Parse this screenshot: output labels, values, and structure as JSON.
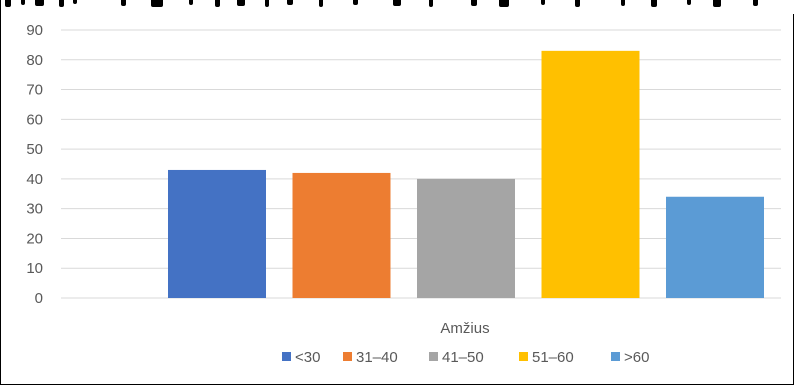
{
  "chart_data": {
    "type": "bar",
    "categories": [
      "Amžius"
    ],
    "series": [
      {
        "name": "<30",
        "values": [
          43
        ],
        "color": "#4472c4"
      },
      {
        "name": "31–40",
        "values": [
          42
        ],
        "color": "#ed7d31"
      },
      {
        "name": "41–50",
        "values": [
          40
        ],
        "color": "#a5a5a5"
      },
      {
        "name": "51–60",
        "values": [
          83
        ],
        "color": "#ffc000"
      },
      {
        "name": ">60",
        "values": [
          34
        ],
        "color": "#5b9bd5"
      }
    ],
    "yticks": [
      "0",
      "10",
      "20",
      "30",
      "40",
      "50",
      "60",
      "70",
      "80",
      "90"
    ],
    "ylim": [
      0,
      90
    ],
    "grid": true,
    "legend": "bottom",
    "gridline_color": "#d9d9d9"
  }
}
